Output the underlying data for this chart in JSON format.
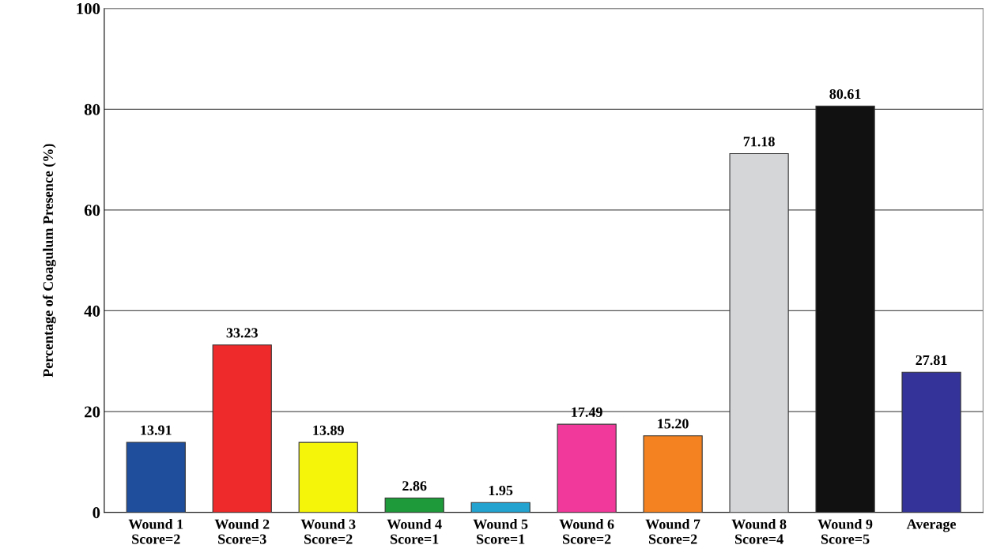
{
  "chart_data": {
    "type": "bar",
    "ylabel": "Percentage of Coagulum Presence (%)",
    "categories": [
      "Wound 1\nScore=2",
      "Wound 2\nScore=3",
      "Wound 3\nScore=2",
      "Wound 4\nScore=1",
      "Wound 5\nScore=1",
      "Wound 6\nScore=2",
      "Wound 7\nScore=2",
      "Wound 8\nScore=4",
      "Wound 9\nScore=5",
      "Average"
    ],
    "values": [
      13.91,
      33.23,
      13.89,
      2.86,
      1.95,
      17.49,
      15.2,
      71.18,
      80.61,
      27.81
    ],
    "value_labels": [
      "13.91",
      "33.23",
      "13.89",
      "2.86",
      "1.95",
      "17.49",
      "15.20",
      "71.18",
      "80.61",
      "27.81"
    ],
    "colors": [
      "#1f4e9c",
      "#ee2a2a",
      "#f5f50a",
      "#1e9a3a",
      "#22a3d0",
      "#f0399a",
      "#f58220",
      "#d4d6d8",
      "#111111",
      "#33339a"
    ],
    "ylim": [
      0,
      100
    ],
    "yticks": [
      0,
      20,
      40,
      60,
      80,
      100
    ],
    "grid": "y"
  }
}
